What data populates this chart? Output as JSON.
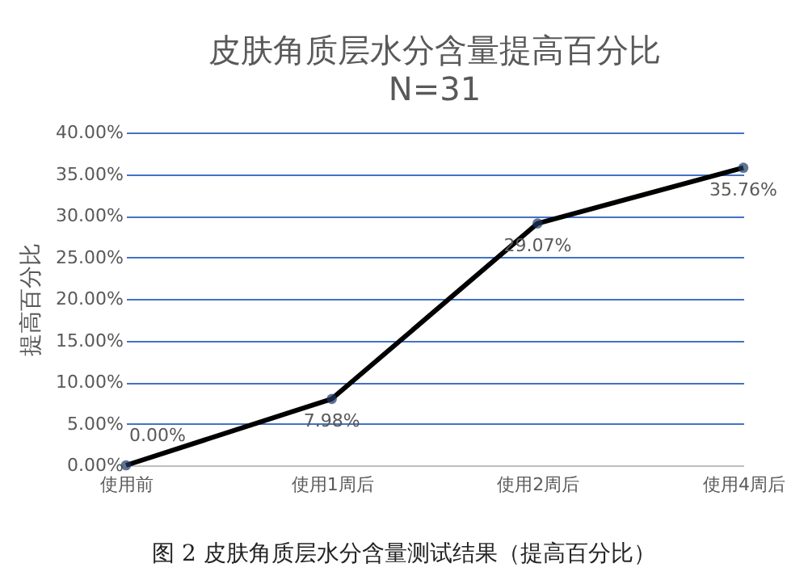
{
  "chart_data": {
    "type": "line",
    "title": "皮肤角质层水分含量提高百分比",
    "subtitle": "N=31",
    "ylabel": "提高百分比",
    "annotations": [
      "图 2 皮肤角质层水分含量测试结果（提高百分比）"
    ],
    "categories": [
      "使用前",
      "使用1周后",
      "使用2周后",
      "使用4周后"
    ],
    "series": [
      {
        "color": "#000000",
        "values": [
          0,
          7.98,
          29.07,
          35.76
        ],
        "value_labels": [
          "0.00%",
          "7.98%",
          "29.07%",
          "35.76%"
        ]
      }
    ],
    "ylim": [
      0,
      40
    ],
    "yticks": [
      {
        "value": 0,
        "label": "0.00%"
      },
      {
        "value": 5,
        "label": "5.00%"
      },
      {
        "value": 10,
        "label": "10.00%"
      },
      {
        "value": 15,
        "label": "15.00%"
      },
      {
        "value": 20,
        "label": "20.00%"
      },
      {
        "value": 25,
        "label": "25.00%"
      },
      {
        "value": 30,
        "label": "30.00%"
      },
      {
        "value": 35,
        "label": "35.00%"
      },
      {
        "value": 40,
        "label": "40.00%"
      }
    ],
    "grid": "y",
    "marker": "circle",
    "line_style": "solid"
  }
}
